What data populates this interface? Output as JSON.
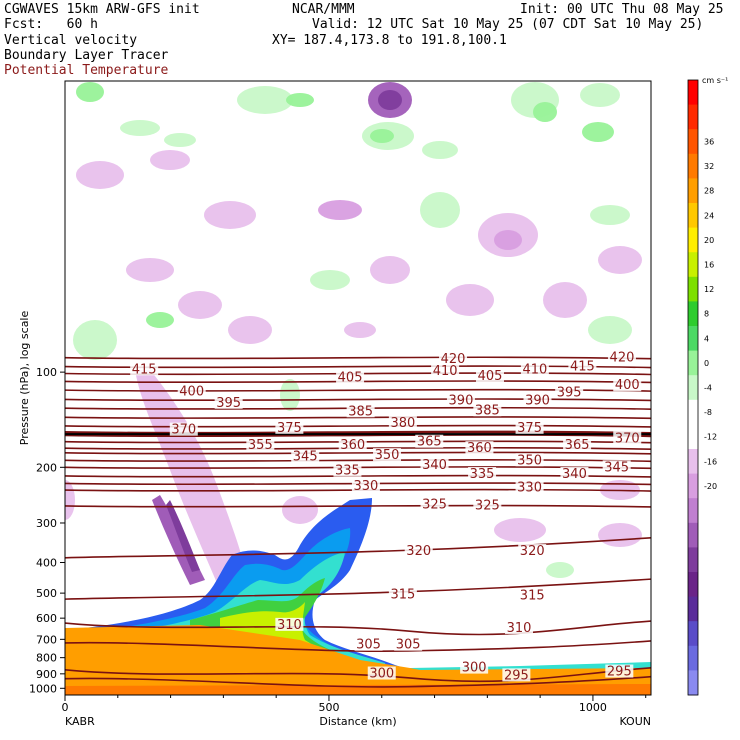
{
  "header": {
    "line1_left": "CGWAVES 15km ARW-GFS init",
    "line1_center": "NCAR/MMM",
    "line1_right": "Init: 00 UTC Thu 08 May 25",
    "line2_left": "Fcst:   60 h",
    "line2_right": "Valid: 12 UTC Sat 10 May 25 (07 CDT Sat 10 May 25)",
    "line3_left": "Vertical velocity",
    "line3_right": "XY= 187.4,173.8 to 191.8,100.1",
    "line4_left": "Boundary Layer Tracer",
    "line5_left": "Potential Temperature"
  },
  "colors": {
    "theta_line": "#7a1212",
    "theta_label": "#8b1a1a"
  },
  "chart_data": {
    "type": "heatmap",
    "xlabel": "Distance (km)",
    "ylabel": "Pressure (hPa), log scale",
    "x_ticks": [
      0,
      500,
      1000
    ],
    "xlim": [
      0,
      1110
    ],
    "x_endpoint_left": "KABR",
    "x_endpoint_right": "KOUN",
    "y_ticks": [
      100,
      200,
      300,
      400,
      500,
      600,
      700,
      800,
      900,
      1000
    ],
    "ylim": [
      1050,
      12
    ],
    "y_scale": "log",
    "colorbar": {
      "units": "cm s⁻¹",
      "ticks": [
        36,
        32,
        28,
        24,
        20,
        16,
        12,
        8,
        4,
        0,
        -4,
        -8,
        -12,
        -16,
        -20
      ],
      "colors": [
        "#ff0000",
        "#ff2a00",
        "#ff5500",
        "#ff7a00",
        "#ff9e00",
        "#ffc800",
        "#ffee00",
        "#c8f000",
        "#7de000",
        "#2ecc2e",
        "#4cd964",
        "#98f298",
        "#c8f8c8",
        "#ffffff",
        "#ffffff",
        "#e8c0ec",
        "#d89ee0",
        "#c07fd0",
        "#a05cb8",
        "#7e3c9c",
        "#6a2488",
        "#5a2c9a",
        "#5a4cc8",
        "#6a6ae0",
        "#8a8af0"
      ]
    },
    "theta_contours": [
      {
        "label": "420",
        "p": 90
      },
      {
        "label": "415",
        "p": 96
      },
      {
        "label": "410",
        "p": 101
      },
      {
        "label": "405",
        "p": 107
      },
      {
        "label": "400",
        "p": 114
      },
      {
        "label": "395",
        "p": 122
      },
      {
        "label": "390",
        "p": 130
      },
      {
        "label": "385",
        "p": 139
      },
      {
        "label": "380",
        "p": 148
      },
      {
        "label": "375",
        "p": 155
      },
      {
        "label": "370",
        "p": 158
      },
      {
        "label": "365",
        "p": 166
      },
      {
        "label": "360",
        "p": 174
      },
      {
        "label": "355",
        "p": 180
      },
      {
        "label": "350",
        "p": 190
      },
      {
        "label": "345",
        "p": 200
      },
      {
        "label": "340",
        "p": 213
      },
      {
        "label": "335",
        "p": 225
      },
      {
        "label": "330",
        "p": 236
      },
      {
        "label": "325",
        "p": 265
      },
      {
        "label": "320",
        "p": 370
      },
      {
        "label": "315",
        "p": 500
      },
      {
        "label": "310",
        "p": 640
      },
      {
        "label": "305",
        "p": 740
      },
      {
        "label": "300",
        "p": 900
      },
      {
        "label": "295",
        "p": 960
      }
    ],
    "theta_label_positions": [
      {
        "text": "420",
        "x": 735,
        "p": 91
      },
      {
        "text": "420",
        "x": 1055,
        "p": 90
      },
      {
        "text": "415",
        "x": 150,
        "p": 98
      },
      {
        "text": "415",
        "x": 980,
        "p": 96
      },
      {
        "text": "410",
        "x": 720,
        "p": 99
      },
      {
        "text": "410",
        "x": 890,
        "p": 98
      },
      {
        "text": "405",
        "x": 540,
        "p": 104
      },
      {
        "text": "405",
        "x": 805,
        "p": 103
      },
      {
        "text": "400",
        "x": 240,
        "p": 115
      },
      {
        "text": "400",
        "x": 1065,
        "p": 110
      },
      {
        "text": "395",
        "x": 310,
        "p": 125
      },
      {
        "text": "395",
        "x": 955,
        "p": 116
      },
      {
        "text": "390",
        "x": 750,
        "p": 123
      },
      {
        "text": "390",
        "x": 895,
        "p": 123
      },
      {
        "text": "385",
        "x": 560,
        "p": 133
      },
      {
        "text": "385",
        "x": 800,
        "p": 132
      },
      {
        "text": "380",
        "x": 640,
        "p": 145
      },
      {
        "text": "375",
        "x": 425,
        "p": 150
      },
      {
        "text": "375",
        "x": 880,
        "p": 150
      },
      {
        "text": "370",
        "x": 225,
        "p": 152
      },
      {
        "text": "370",
        "x": 1065,
        "p": 162
      },
      {
        "text": "365",
        "x": 690,
        "p": 166
      },
      {
        "text": "365",
        "x": 970,
        "p": 170
      },
      {
        "text": "360",
        "x": 545,
        "p": 170
      },
      {
        "text": "360",
        "x": 785,
        "p": 174
      },
      {
        "text": "355",
        "x": 370,
        "p": 170
      },
      {
        "text": "350",
        "x": 610,
        "p": 183
      },
      {
        "text": "350",
        "x": 880,
        "p": 190
      },
      {
        "text": "345",
        "x": 455,
        "p": 185
      },
      {
        "text": "345",
        "x": 1045,
        "p": 200
      },
      {
        "text": "340",
        "x": 700,
        "p": 197
      },
      {
        "text": "340",
        "x": 965,
        "p": 210
      },
      {
        "text": "335",
        "x": 535,
        "p": 205
      },
      {
        "text": "335",
        "x": 790,
        "p": 210
      },
      {
        "text": "330",
        "x": 570,
        "p": 229
      },
      {
        "text": "330",
        "x": 880,
        "p": 232
      },
      {
        "text": "325",
        "x": 700,
        "p": 262
      },
      {
        "text": "325",
        "x": 800,
        "p": 264
      },
      {
        "text": "320",
        "x": 670,
        "p": 368
      },
      {
        "text": "320",
        "x": 885,
        "p": 368
      },
      {
        "text": "315",
        "x": 640,
        "p": 505
      },
      {
        "text": "315",
        "x": 885,
        "p": 508
      },
      {
        "text": "310",
        "x": 425,
        "p": 630
      },
      {
        "text": "310",
        "x": 860,
        "p": 645
      },
      {
        "text": "305",
        "x": 575,
        "p": 728
      },
      {
        "text": "305",
        "x": 650,
        "p": 728
      },
      {
        "text": "300",
        "x": 600,
        "p": 898
      },
      {
        "text": "300",
        "x": 775,
        "p": 860
      },
      {
        "text": "295",
        "x": 855,
        "p": 910
      },
      {
        "text": "295",
        "x": 1050,
        "p": 885
      }
    ]
  }
}
